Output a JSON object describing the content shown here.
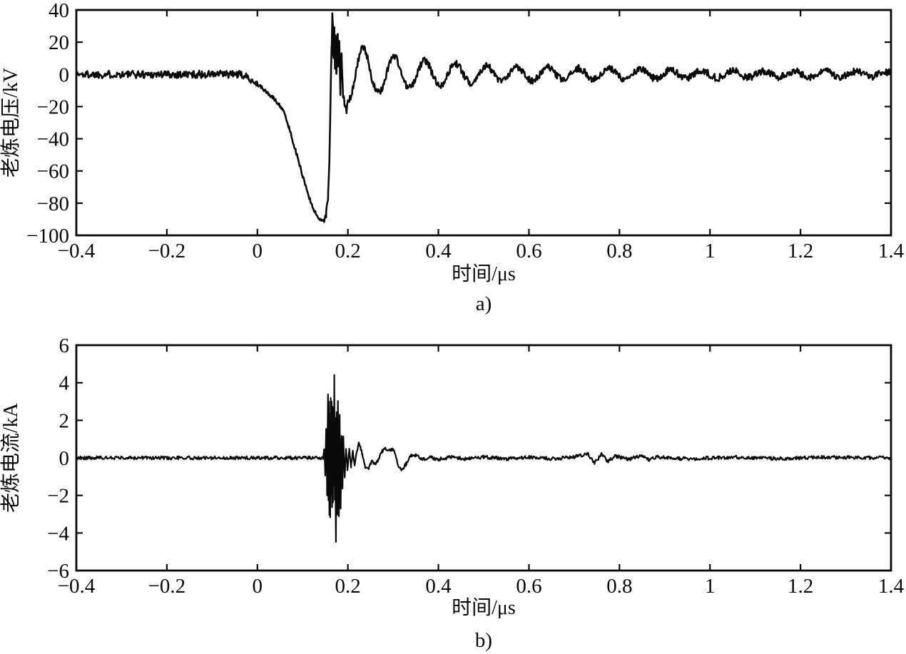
{
  "page": {
    "background": "#ffffff",
    "ink": "#0a0a0a"
  },
  "chart_data": [
    {
      "type": "line",
      "panel_label": "a)",
      "xlabel": "时间/μs",
      "ylabel": "老炼电压/kV",
      "xlim": [
        -0.4,
        1.4
      ],
      "ylim": [
        -100,
        40
      ],
      "grid": false,
      "legend": null,
      "xticks": {
        "values": [
          -0.4,
          -0.2,
          0,
          0.2,
          0.4,
          0.6,
          0.8,
          1,
          1.2,
          1.4
        ],
        "labels": [
          "−0.4",
          "−0.2",
          "0",
          "0.2",
          "0.4",
          "0.6",
          "0.8",
          "1",
          "1.2",
          "1.4"
        ]
      },
      "yticks": {
        "values": [
          40,
          20,
          0,
          -20,
          -40,
          -60,
          -80,
          -100
        ],
        "labels": [
          "40",
          "20",
          "0",
          "−20",
          "−40",
          "−60",
          "−80",
          "−100"
        ]
      },
      "series_name": "aging-voltage-waveform",
      "signal": {
        "keypoints": [
          [
            -0.4,
            0
          ],
          [
            -0.04,
            0
          ],
          [
            -0.02,
            -2
          ],
          [
            0.0,
            -6
          ],
          [
            0.02,
            -11
          ],
          [
            0.04,
            -16
          ],
          [
            0.055,
            -21
          ],
          [
            0.07,
            -33
          ],
          [
            0.085,
            -48
          ],
          [
            0.1,
            -63
          ],
          [
            0.115,
            -77
          ],
          [
            0.128,
            -86
          ],
          [
            0.138,
            -90
          ],
          [
            0.147,
            -91
          ],
          [
            0.152,
            -87
          ],
          [
            0.156,
            -76
          ],
          [
            0.159,
            -55
          ],
          [
            0.161,
            -28
          ],
          [
            0.1625,
            0
          ],
          [
            0.164,
            18
          ],
          [
            0.1655,
            33
          ],
          [
            0.167,
            25
          ],
          [
            0.1685,
            8
          ],
          [
            0.17,
            28
          ],
          [
            0.1715,
            5
          ],
          [
            0.173,
            20
          ],
          [
            0.175,
            -2
          ],
          [
            0.177,
            24
          ],
          [
            0.179,
            3
          ],
          [
            0.181,
            14
          ],
          [
            0.1835,
            -6
          ],
          [
            0.186,
            8
          ],
          [
            0.189,
            -12
          ],
          [
            0.192,
            -17
          ],
          [
            0.197,
            -22
          ]
        ],
        "ring": {
          "t0": 0.166,
          "period": 0.068,
          "apply_after": 0.197,
          "envelope": [
            [
              17,
              0.12
            ],
            [
              7,
              0.8
            ]
          ],
          "neg_scale": 0.85
        },
        "noise": {
          "base": 2.2,
          "windows": [
            {
              "from": -0.4,
              "to": -0.045,
              "amp": 2.4
            },
            {
              "from": 0.0,
              "to": 0.15,
              "amp": 1.2
            },
            {
              "from": 0.163,
              "to": 0.186,
              "amp": 7
            }
          ]
        }
      }
    },
    {
      "type": "line",
      "panel_label": "b)",
      "xlabel": "时间/μs",
      "ylabel": "老炼电流/kA",
      "xlim": [
        -0.4,
        1.4
      ],
      "ylim": [
        -6,
        6
      ],
      "grid": false,
      "legend": null,
      "xticks": {
        "values": [
          -0.4,
          -0.2,
          0,
          0.2,
          0.4,
          0.6,
          0.8,
          1,
          1.2,
          1.4
        ],
        "labels": [
          "−0.4",
          "−0.2",
          "0",
          "0.2",
          "0.4",
          "0.6",
          "0.8",
          "1",
          "1.2",
          "1.4"
        ]
      },
      "yticks": {
        "values": [
          6,
          4,
          2,
          0,
          -2,
          -4,
          -6
        ],
        "labels": [
          "6",
          "4",
          "2",
          "0",
          "−2",
          "−4",
          "−6"
        ]
      },
      "series_name": "aging-current-waveform",
      "signal": {
        "keypoints": [
          [
            -0.4,
            0
          ],
          [
            0.145,
            0
          ],
          [
            0.148,
            0.5
          ],
          [
            0.15,
            -0.8
          ],
          [
            0.152,
            1.6
          ],
          [
            0.154,
            -1.8
          ],
          [
            0.156,
            2.9
          ],
          [
            0.157,
            -2.6
          ],
          [
            0.158,
            3.1
          ],
          [
            0.159,
            -3.0
          ],
          [
            0.16,
            2.6
          ],
          [
            0.161,
            -2.9
          ],
          [
            0.162,
            3.2
          ],
          [
            0.163,
            -2.4
          ],
          [
            0.164,
            2.8
          ],
          [
            0.165,
            -3.1
          ],
          [
            0.166,
            2.5
          ],
          [
            0.167,
            -2.2
          ],
          [
            0.168,
            3.0
          ],
          [
            0.169,
            -1.6
          ],
          [
            0.17,
            4.4
          ],
          [
            0.171,
            -2.0
          ],
          [
            0.172,
            2.4
          ],
          [
            0.1735,
            -4.7
          ],
          [
            0.175,
            2.1
          ],
          [
            0.1765,
            -2.6
          ],
          [
            0.178,
            2.9
          ],
          [
            0.18,
            -3.4
          ],
          [
            0.182,
            1.8
          ],
          [
            0.184,
            -2.6
          ],
          [
            0.186,
            1.2
          ],
          [
            0.188,
            -1.6
          ],
          [
            0.19,
            0.8
          ],
          [
            0.193,
            -1.0
          ],
          [
            0.196,
            0.5
          ],
          [
            0.199,
            -0.6
          ],
          [
            0.203,
            0.4
          ],
          [
            0.207,
            -0.45
          ],
          [
            0.211,
            0.3
          ],
          [
            0.215,
            -0.35
          ],
          [
            0.219,
            0.25
          ],
          [
            0.224,
            0.8
          ],
          [
            0.228,
            0.55
          ],
          [
            0.232,
            0.15
          ],
          [
            0.238,
            -0.5
          ],
          [
            0.246,
            -0.55
          ],
          [
            0.253,
            -0.15
          ],
          [
            0.261,
            -0.35
          ],
          [
            0.268,
            -0.05
          ],
          [
            0.276,
            0.35
          ],
          [
            0.284,
            0.5
          ],
          [
            0.292,
            0.4
          ],
          [
            0.299,
            0.5
          ],
          [
            0.306,
            0.1
          ],
          [
            0.312,
            -0.55
          ],
          [
            0.32,
            -0.6
          ],
          [
            0.329,
            -0.3
          ],
          [
            0.338,
            0.1
          ],
          [
            0.35,
            0.12
          ],
          [
            0.365,
            -0.1
          ],
          [
            0.38,
            0.05
          ],
          [
            0.4,
            -0.08
          ],
          [
            0.43,
            0.06
          ],
          [
            0.46,
            -0.06
          ],
          [
            0.5,
            0.05
          ],
          [
            0.55,
            -0.05
          ],
          [
            0.6,
            0.04
          ],
          [
            0.65,
            -0.05
          ],
          [
            0.7,
            0.04
          ],
          [
            0.73,
            0.22
          ],
          [
            0.745,
            -0.28
          ],
          [
            0.76,
            0.18
          ],
          [
            0.775,
            -0.2
          ],
          [
            0.79,
            0.1
          ],
          [
            0.82,
            -0.08
          ],
          [
            0.85,
            0.15
          ],
          [
            0.865,
            -0.12
          ],
          [
            0.88,
            0.05
          ],
          [
            0.95,
            -0.05
          ],
          [
            1.05,
            0.04
          ],
          [
            1.15,
            -0.04
          ],
          [
            1.25,
            0.03
          ],
          [
            1.4,
            0
          ]
        ],
        "ring": null,
        "noise": {
          "base": 0.09,
          "windows": [
            {
              "from": 0.15,
              "to": 0.19,
              "amp": 0.5
            }
          ]
        }
      }
    }
  ]
}
